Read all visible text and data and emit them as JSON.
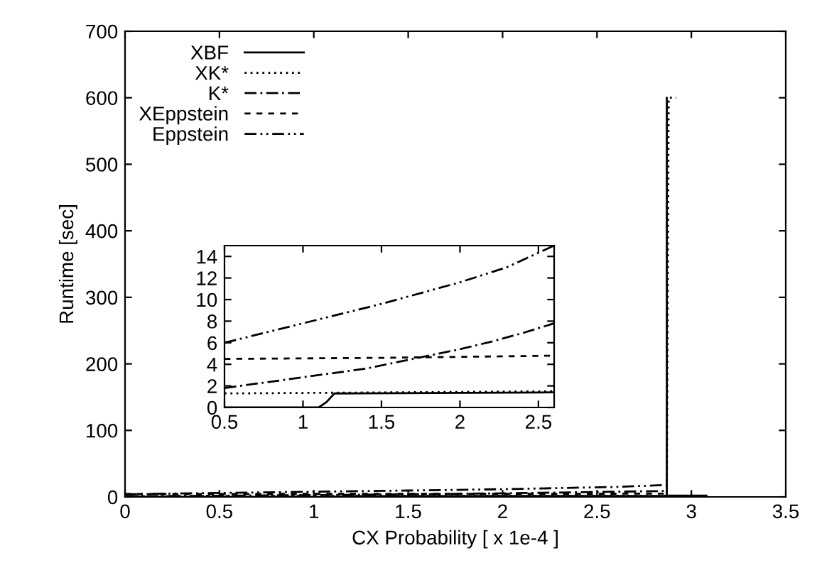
{
  "chart_data": [
    {
      "type": "line",
      "xlabel": "CX Probability [ x 1e-4 ]",
      "ylabel": "Runtime [sec]",
      "xlim": [
        0,
        3.5
      ],
      "ylim": [
        0,
        700
      ],
      "xticks": [
        0,
        0.5,
        1,
        1.5,
        2,
        2.5,
        3,
        3.5
      ],
      "yticks": [
        0,
        100,
        200,
        300,
        400,
        500,
        600,
        700
      ],
      "legend": "top left",
      "grid": false,
      "series": [
        {
          "name": "XBF",
          "color": "#000000",
          "line_style": "solid",
          "x": [
            0,
            1.1,
            1.2,
            2.6,
            2.87,
            2.87,
            2.87,
            3.08
          ],
          "values": [
            0,
            0,
            1.3,
            1.4,
            1.5,
            600,
            2,
            2
          ]
        },
        {
          "name": "XK*",
          "color": "#000000",
          "line_style": "dotted",
          "x": [
            0,
            2.6,
            2.87,
            2.88,
            2.92
          ],
          "values": [
            1.3,
            1.5,
            1.6,
            600,
            600
          ]
        },
        {
          "name": "K*",
          "color": "#000000",
          "line_style": "dashdot",
          "x": [
            0,
            0.5,
            1,
            1.5,
            2,
            2.6,
            2.87
          ],
          "values": [
            1,
            1.8,
            2.8,
            3.9,
            5.4,
            7.8,
            9
          ]
        },
        {
          "name": "XEppstein",
          "color": "#000000",
          "line_style": "dashed",
          "x": [
            0,
            0.5,
            1.5,
            2.6,
            2.87
          ],
          "values": [
            4.4,
            4.5,
            4.6,
            4.8,
            5
          ]
        },
        {
          "name": "Eppstein",
          "color": "#000000",
          "line_style": "dashdotdot",
          "x": [
            0,
            0.5,
            1,
            1.5,
            2,
            2.6,
            2.87
          ],
          "values": [
            4,
            6,
            7.8,
            9.6,
            11.6,
            15,
            18
          ]
        }
      ]
    },
    {
      "type": "line",
      "xlim": [
        0.5,
        2.6
      ],
      "ylim": [
        0,
        15
      ],
      "xticks": [
        0.5,
        1,
        1.5,
        2,
        2.5
      ],
      "yticks": [
        0,
        2,
        4,
        6,
        8,
        10,
        12,
        14
      ],
      "grid": false,
      "series": [
        {
          "color": "#000000",
          "line_style": "solid",
          "x": [
            0.5,
            1.1,
            1.15,
            1.2,
            2.6
          ],
          "values": [
            0,
            0,
            0.5,
            1.3,
            1.4
          ]
        },
        {
          "color": "#000000",
          "line_style": "dotted",
          "x": [
            0.5,
            2.6
          ],
          "values": [
            1.3,
            1.5
          ]
        },
        {
          "color": "#000000",
          "line_style": "dashdot",
          "x": [
            0.5,
            0.8,
            1,
            1.2,
            1.4,
            1.7,
            2,
            2.2,
            2.4,
            2.6
          ],
          "values": [
            1.8,
            2.4,
            2.8,
            3.2,
            3.6,
            4.5,
            5.4,
            6.1,
            6.9,
            7.8
          ]
        },
        {
          "color": "#000000",
          "line_style": "dashed",
          "x": [
            0.5,
            1.5,
            2.6
          ],
          "values": [
            4.5,
            4.6,
            4.8
          ]
        },
        {
          "color": "#000000",
          "line_style": "dashdotdot",
          "x": [
            0.5,
            1,
            1.5,
            2,
            2.3,
            2.6
          ],
          "values": [
            6,
            7.8,
            9.6,
            11.6,
            13,
            15
          ]
        }
      ]
    }
  ]
}
